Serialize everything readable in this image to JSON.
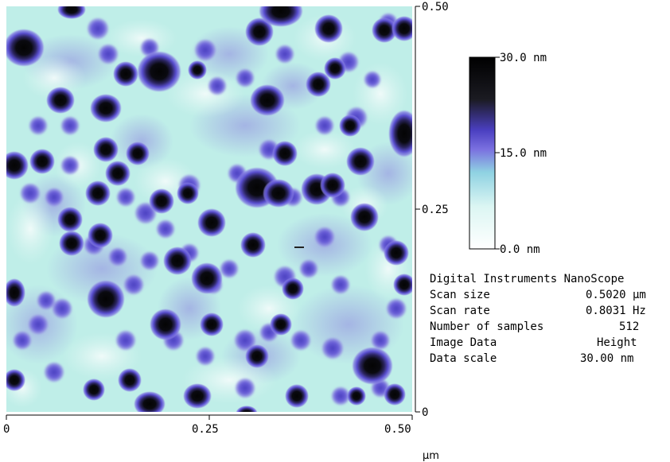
{
  "image": {
    "description_colors": {
      "background_high": "#c8f4ee",
      "particle_mid": "#6a5fd8",
      "particle_core": "#050505"
    }
  },
  "axes": {
    "x_ticks": [
      "0",
      "0.25",
      "0.50"
    ],
    "y_ticks": [
      "0.50",
      "0.25",
      "0"
    ],
    "unit": "µm"
  },
  "color_scale": {
    "top_label": "30.0 nm",
    "mid_label": "15.0 nm",
    "bottom_label": "0.0 nm",
    "stops": [
      "#000000",
      "#1a1a24",
      "#5548c8",
      "#7a70e0",
      "#9ad8e6",
      "#d8f6f2",
      "#ffffff"
    ]
  },
  "info": {
    "header": "Digital Instruments NanoScope",
    "rows": [
      {
        "label": "Scan size",
        "value": "0.5020 µm"
      },
      {
        "label": "Scan rate",
        "value": "0.8031 Hz"
      },
      {
        "label": "Number of samples",
        "value": "512"
      },
      {
        "label": "Image Data",
        "value": "Height"
      },
      {
        "label": "Data scale",
        "value": "30.00 nm"
      }
    ]
  }
}
